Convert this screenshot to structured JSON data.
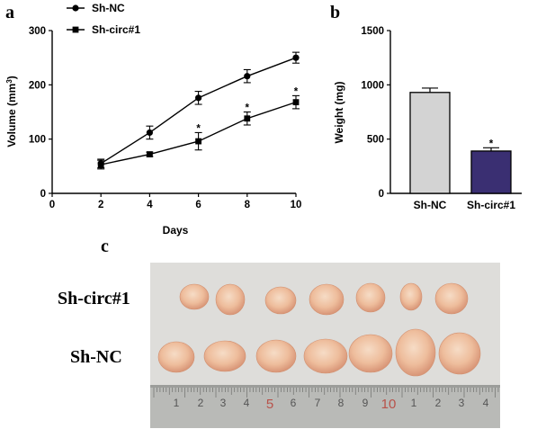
{
  "chart_data": [
    {
      "type": "line",
      "panel": "a",
      "x": [
        2,
        4,
        6,
        8,
        10
      ],
      "xlabel": "Days",
      "ylabel": "Volume (mm",
      "ylabel_sup": "3",
      "ylabel_close": ")",
      "xlim": [
        0,
        10
      ],
      "ylim": [
        0,
        300
      ],
      "xticks": [
        "0",
        "2",
        "4",
        "6",
        "8",
        "10"
      ],
      "yticks": [
        "0",
        "100",
        "200",
        "300"
      ],
      "legend_position": "top-left",
      "series": [
        {
          "name": "Sh-NC",
          "marker": "circle",
          "values": [
            55,
            112,
            176,
            216,
            250
          ],
          "errors": [
            8,
            12,
            12,
            12,
            10
          ],
          "sig": []
        },
        {
          "name": "Sh-circ#1",
          "marker": "square",
          "values": [
            53,
            72,
            96,
            138,
            168
          ],
          "errors": [
            8,
            4,
            16,
            12,
            12
          ],
          "sig": [
            "",
            "",
            "*",
            "*",
            "*"
          ]
        }
      ],
      "grid": false
    },
    {
      "type": "bar",
      "panel": "b",
      "categories": [
        "Sh-NC",
        "Sh-circ#1"
      ],
      "values": [
        930,
        390
      ],
      "errors": [
        40,
        30
      ],
      "sig": [
        "",
        "*"
      ],
      "colors": [
        "#d3d3d3",
        "#3a2f72"
      ],
      "ylabel": "Weight (mg)",
      "ylim": [
        0,
        1500
      ],
      "yticks": [
        "0",
        "500",
        "1000",
        "1500"
      ],
      "grid": false
    }
  ],
  "panel_c": {
    "letter": "c",
    "row_labels": [
      "Sh-circ#1",
      "Sh-NC"
    ],
    "ruler_numbers": [
      "1",
      "2",
      "3",
      "4",
      "5",
      "6",
      "7",
      "8",
      "9",
      "10",
      "1",
      "2",
      "3",
      "4"
    ]
  }
}
